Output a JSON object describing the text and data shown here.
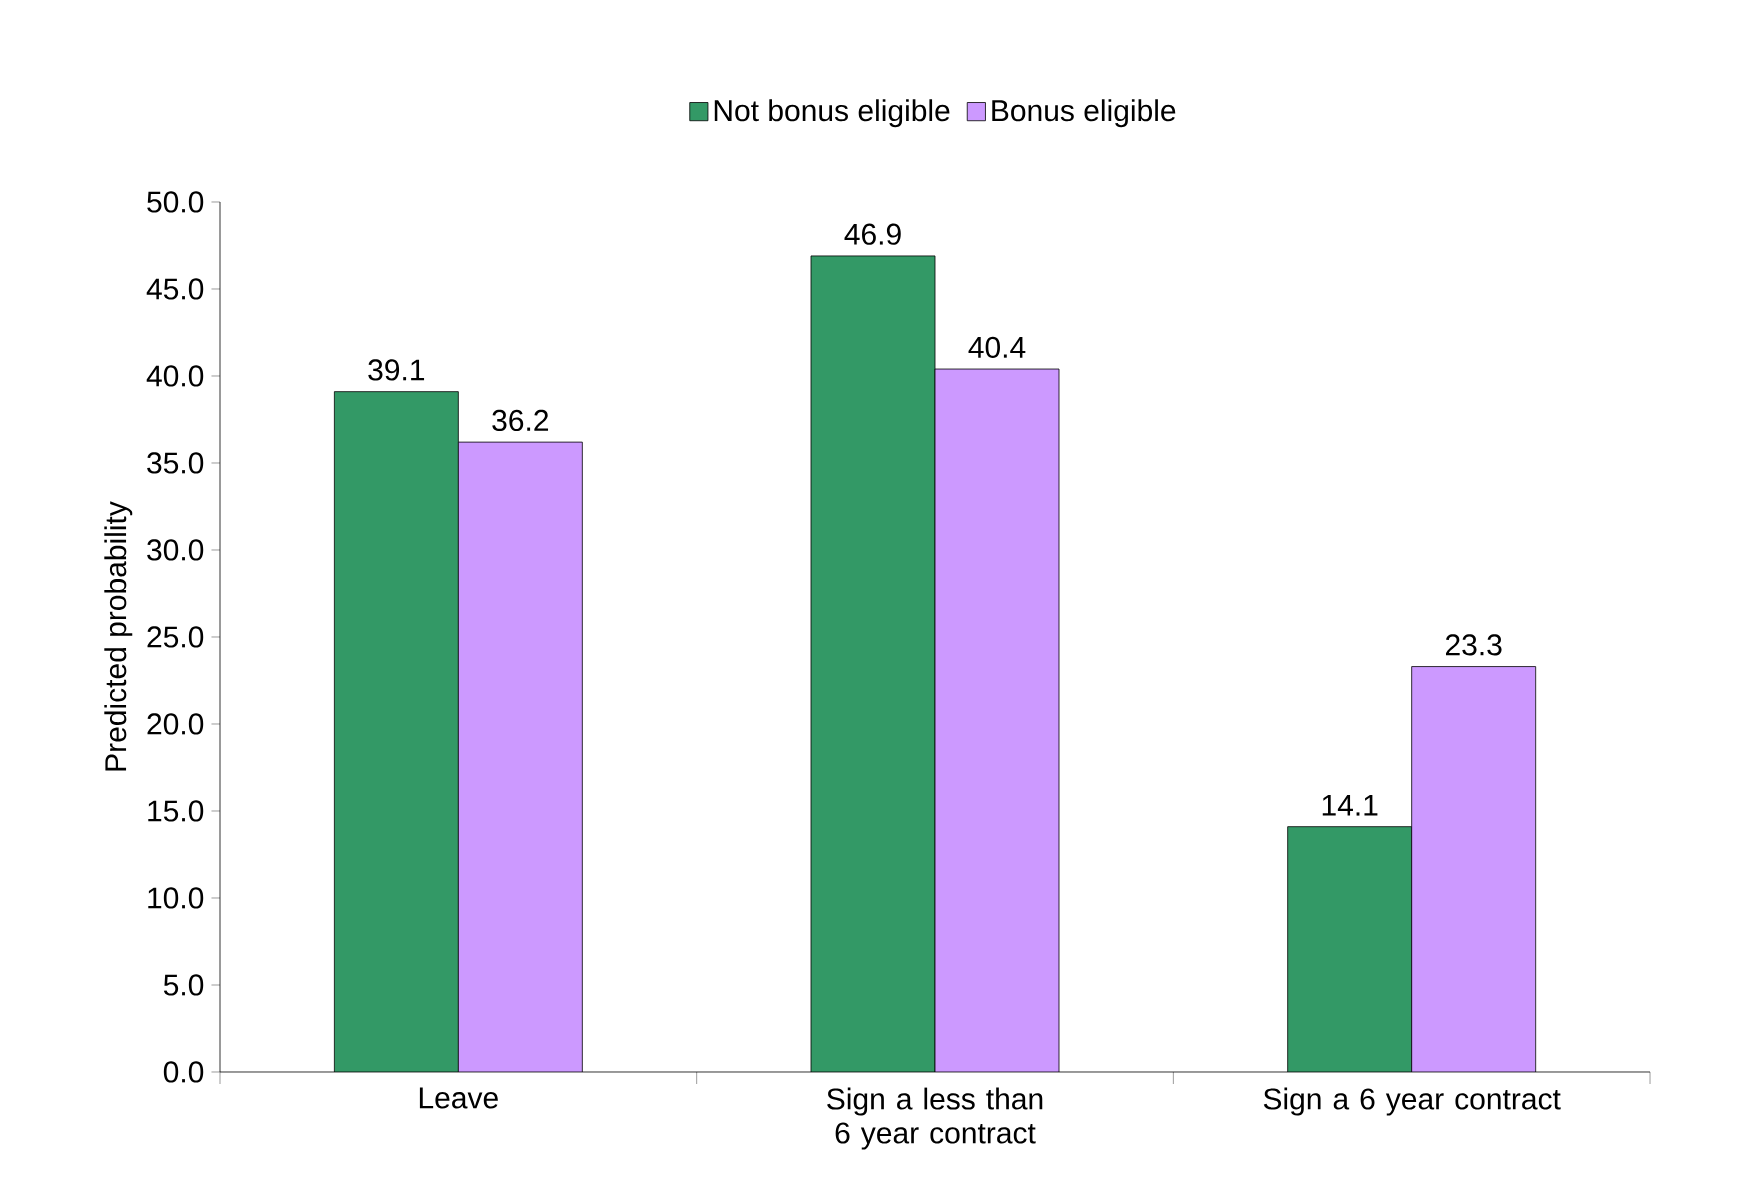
{
  "chart_data": {
    "type": "bar",
    "ylabel": "Predicted probability",
    "categories": [
      "Leave",
      "Sign a less than 6 year contract",
      "Sign a 6 year contract"
    ],
    "series": [
      {
        "name": "Not bonus eligible",
        "color": "#339966",
        "values": [
          39.1,
          46.9,
          14.1
        ]
      },
      {
        "name": "Bonus eligible",
        "color": "#cc99ff",
        "values": [
          36.2,
          40.4,
          23.3
        ]
      }
    ],
    "ylim": [
      0,
      50
    ],
    "yticks": [
      {
        "value": 0,
        "label": "0.0"
      },
      {
        "value": 5,
        "label": "5.0"
      },
      {
        "value": 10,
        "label": "10.0"
      },
      {
        "value": 15,
        "label": "15.0"
      },
      {
        "value": 20,
        "label": "20.0"
      },
      {
        "value": 25,
        "label": "25.0"
      },
      {
        "value": 30,
        "label": "30.0"
      },
      {
        "value": 35,
        "label": "35.0"
      },
      {
        "value": 40,
        "label": "40.0"
      },
      {
        "value": 45,
        "label": "45.0"
      },
      {
        "value": 50,
        "label": "50.0"
      }
    ],
    "data_labels": true,
    "legend": "top",
    "grid": false
  }
}
